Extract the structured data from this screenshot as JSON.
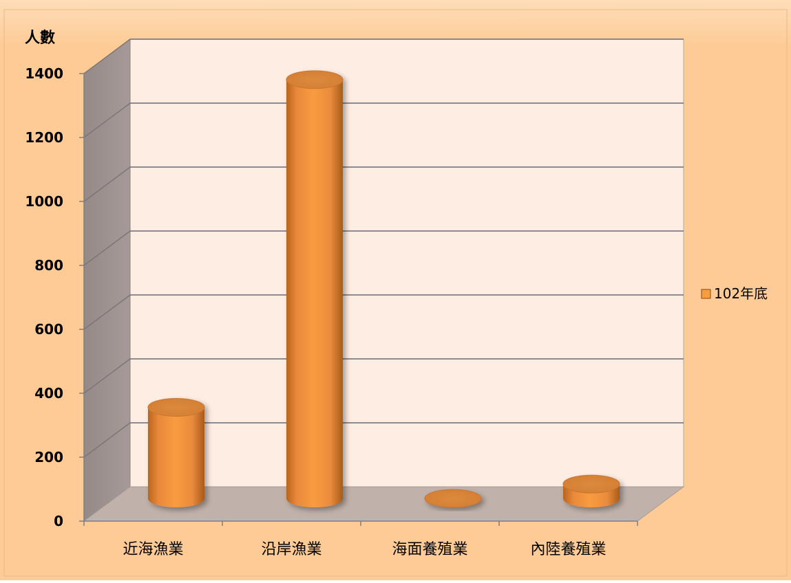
{
  "chart_data": {
    "type": "bar",
    "style": "3d-cylinder",
    "ylabel": "人數",
    "categories": [
      "近海漁業",
      "沿岸漁業",
      "海面養殖業",
      "內陸養殖業"
    ],
    "series": [
      {
        "name": "102年底",
        "values": [
          285,
          1310,
          0,
          45
        ]
      }
    ],
    "ylim": [
      0,
      1400
    ],
    "yticks": [
      0,
      200,
      400,
      600,
      800,
      1000,
      1200,
      1400
    ],
    "grid": true,
    "legend": "right",
    "colors": {
      "background": "#fecb96",
      "plot_back": "#fdede3",
      "side_wall": "#a59a97",
      "floor": "#c0b1aa",
      "bar": "#f89c40",
      "bar_dark": "#b9651e",
      "bar_top": "#d47e32",
      "gridline": "#666b78"
    }
  }
}
